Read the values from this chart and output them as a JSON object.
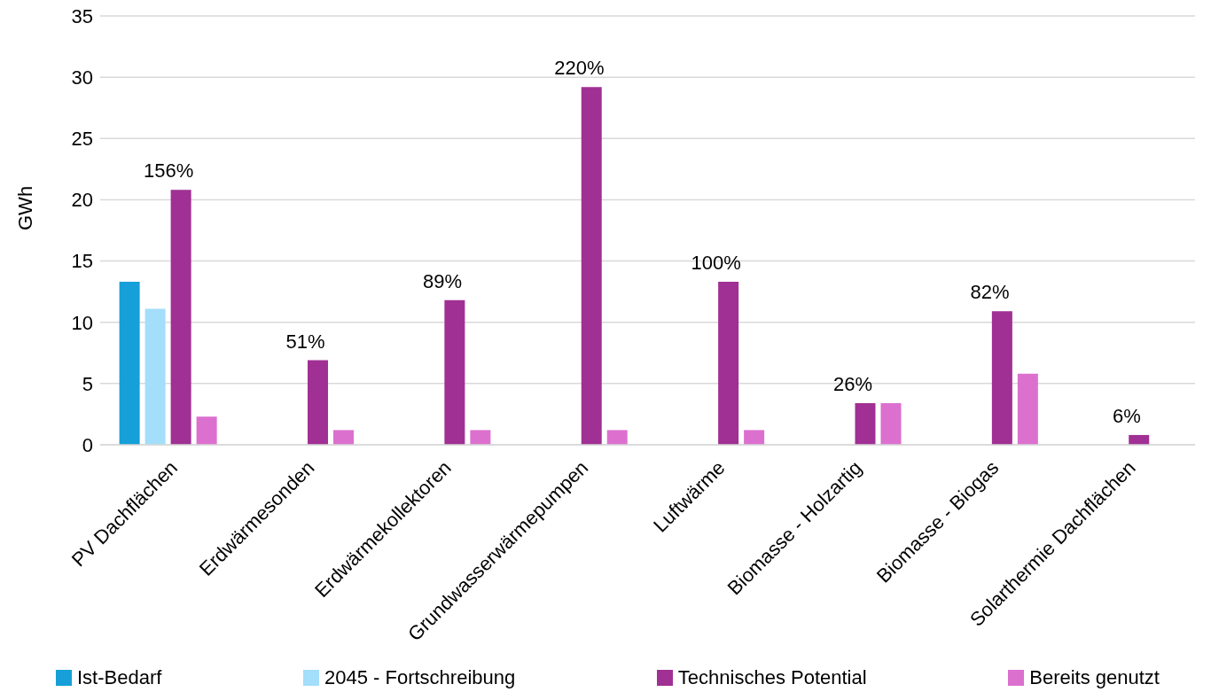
{
  "chart_data": {
    "type": "bar",
    "ylabel": "GWh",
    "categories": [
      "PV Dachflächen",
      "Erdwärmesonden",
      "Erdwärmekollektoren",
      "Grundwasserwärmepumpen",
      "Luftwärme",
      "Biomasse - Holzartig",
      "Biomasse - Biogas",
      "Solarthermie Dachflächen"
    ],
    "series": [
      {
        "name": "Ist-Bedarf",
        "color": "#169fd8",
        "values": [
          13.3,
          null,
          null,
          null,
          null,
          null,
          null,
          null
        ]
      },
      {
        "name": "2045 - Fortschreibung",
        "color": "#a3defa",
        "values": [
          11.1,
          null,
          null,
          null,
          null,
          null,
          null,
          null
        ]
      },
      {
        "name": "Technisches Potential",
        "color": "#a03094",
        "values": [
          20.8,
          6.9,
          11.8,
          29.2,
          13.3,
          3.4,
          10.9,
          0.8
        ]
      },
      {
        "name": "Bereits genutzt",
        "color": "#dc70cf",
        "values": [
          2.3,
          1.2,
          1.2,
          1.2,
          1.2,
          3.4,
          5.8,
          null
        ]
      }
    ],
    "annotations": [
      {
        "text": "156%",
        "x": "PV Dachflächen",
        "y": 20.8
      },
      {
        "text": "51%",
        "x": "Erdwärmesonden",
        "y": 6.9
      },
      {
        "text": "89%",
        "x": "Erdwärmekollektoren",
        "y": 11.8
      },
      {
        "text": "220%",
        "x": "Grundwasserwärmepumpen",
        "y": 29.2
      },
      {
        "text": "100%",
        "x": "Luftwärme",
        "y": 13.3
      },
      {
        "text": "26%",
        "x": "Biomasse - Holzartig",
        "y": 3.4
      },
      {
        "text": "82%",
        "x": "Biomasse - Biogas",
        "y": 10.9
      },
      {
        "text": "6%",
        "x": "Solarthermie Dachflächen",
        "y": 0.8
      }
    ],
    "ylim": [
      0,
      35
    ],
    "yticks": [
      0,
      5,
      10,
      15,
      20,
      25,
      30,
      35
    ],
    "grid": "y",
    "legend": "bottom"
  }
}
